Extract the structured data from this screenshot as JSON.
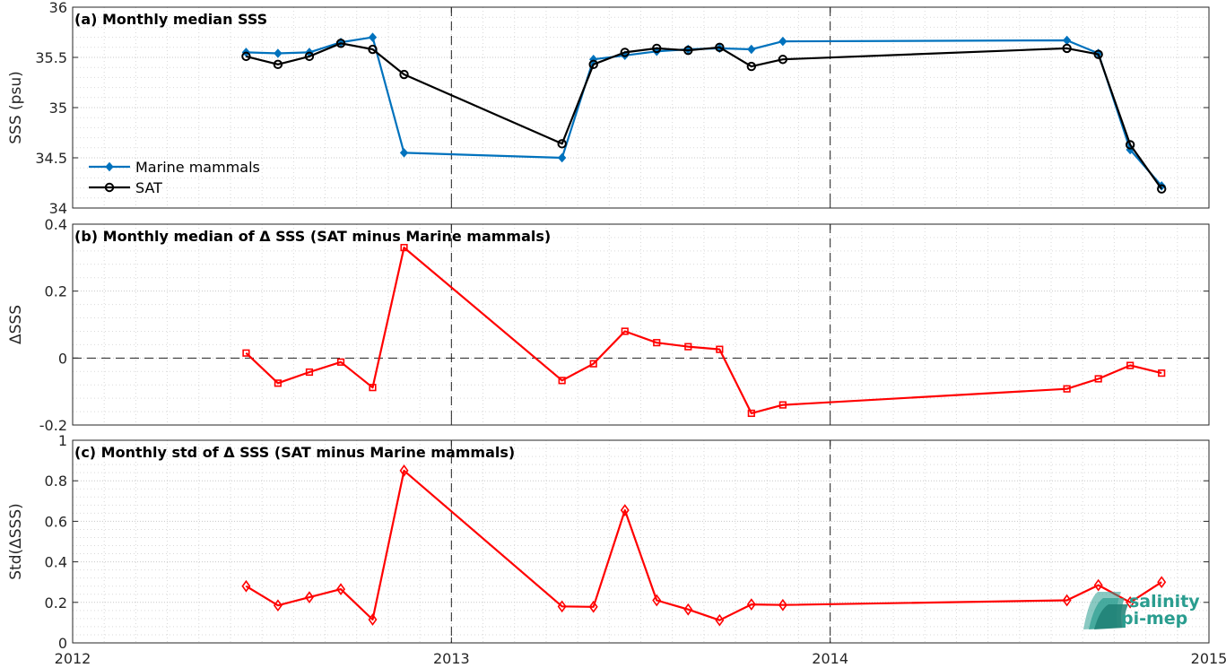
{
  "colors": {
    "marine": "#0072BD",
    "sat": "#000000",
    "delta": "#FF0000",
    "logo": "#2a9d8f"
  },
  "xaxis": {
    "ticks": [
      2012,
      2013,
      2014,
      2015
    ],
    "tick_labels": [
      "2012",
      "2013",
      "2014",
      "2015"
    ],
    "xlim": [
      2012,
      2015
    ]
  },
  "logo": {
    "line1": "salinity",
    "line2": "pi-mep",
    "icon": "wave-logo-icon"
  },
  "chart_data": [
    {
      "type": "line",
      "title": "(a) Monthly median SSS",
      "ylabel": "SSS (psu)",
      "ylim": [
        34,
        36
      ],
      "yticks": [
        34,
        34.5,
        35,
        35.5,
        36
      ],
      "ytick_labels": [
        "34",
        "34.5",
        "35",
        "35.5",
        "36"
      ],
      "grid": true,
      "legend": "lower-left",
      "series": [
        {
          "name": "Marine mammals",
          "color": "marine",
          "marker": "diamond-filled",
          "x": [
            2012.458,
            2012.542,
            2012.625,
            2012.708,
            2012.792,
            2012.875,
            2013.292,
            2013.375,
            2013.458,
            2013.542,
            2013.625,
            2013.708,
            2013.792,
            2013.875,
            2014.625,
            2014.708,
            2014.792,
            2014.875
          ],
          "y": [
            35.55,
            35.54,
            35.55,
            35.65,
            35.7,
            34.55,
            34.5,
            35.48,
            35.52,
            35.56,
            35.58,
            35.59,
            35.58,
            35.66,
            35.67,
            35.54,
            34.58,
            34.22
          ]
        },
        {
          "name": "SAT",
          "color": "sat",
          "marker": "circle-open",
          "x": [
            2012.458,
            2012.542,
            2012.625,
            2012.708,
            2012.792,
            2012.875,
            2013.292,
            2013.375,
            2013.458,
            2013.542,
            2013.625,
            2013.708,
            2013.792,
            2013.875,
            2014.625,
            2014.708,
            2014.792,
            2014.875
          ],
          "y": [
            35.51,
            35.43,
            35.51,
            35.64,
            35.58,
            35.33,
            34.64,
            35.43,
            35.55,
            35.59,
            35.57,
            35.6,
            35.41,
            35.48,
            35.59,
            35.53,
            34.63,
            34.19
          ]
        }
      ]
    },
    {
      "type": "line",
      "title": "(b) Monthly median of Δ SSS (SAT minus Marine mammals)",
      "ylabel": "ΔSSS",
      "ylim": [
        -0.2,
        0.4
      ],
      "yticks": [
        -0.2,
        0,
        0.2,
        0.4
      ],
      "ytick_labels": [
        "-0.2",
        "0",
        "0.2",
        "0.4"
      ],
      "zero_line": true,
      "grid": true,
      "series": [
        {
          "color": "delta",
          "marker": "square-open",
          "x": [
            2012.458,
            2012.542,
            2012.625,
            2012.708,
            2012.792,
            2012.875,
            2013.292,
            2013.375,
            2013.458,
            2013.542,
            2013.625,
            2013.708,
            2013.792,
            2013.875,
            2014.625,
            2014.708,
            2014.792,
            2014.875
          ],
          "y": [
            0.015,
            -0.075,
            -0.042,
            -0.012,
            -0.088,
            0.33,
            -0.067,
            -0.017,
            0.08,
            0.046,
            0.034,
            0.026,
            -0.165,
            -0.14,
            -0.092,
            -0.062,
            -0.022,
            -0.045
          ]
        }
      ]
    },
    {
      "type": "line",
      "title": "(c) Monthly std of Δ SSS (SAT minus Marine mammals)",
      "ylabel": "Std(ΔSSS)",
      "ylim": [
        0,
        1
      ],
      "yticks": [
        0,
        0.2,
        0.4,
        0.6,
        0.8,
        1
      ],
      "ytick_labels": [
        "0",
        "0.2",
        "0.4",
        "0.6",
        "0.8",
        "1"
      ],
      "grid": true,
      "series": [
        {
          "color": "delta",
          "marker": "diamond-open",
          "x": [
            2012.458,
            2012.542,
            2012.625,
            2012.708,
            2012.792,
            2012.875,
            2013.292,
            2013.375,
            2013.458,
            2013.542,
            2013.625,
            2013.708,
            2013.792,
            2013.875,
            2014.625,
            2014.708,
            2014.792,
            2014.875
          ],
          "y": [
            0.28,
            0.185,
            0.225,
            0.265,
            0.115,
            0.85,
            0.18,
            0.178,
            0.655,
            0.21,
            0.165,
            0.112,
            0.19,
            0.187,
            0.21,
            0.285,
            0.2,
            0.3
          ]
        }
      ]
    }
  ]
}
